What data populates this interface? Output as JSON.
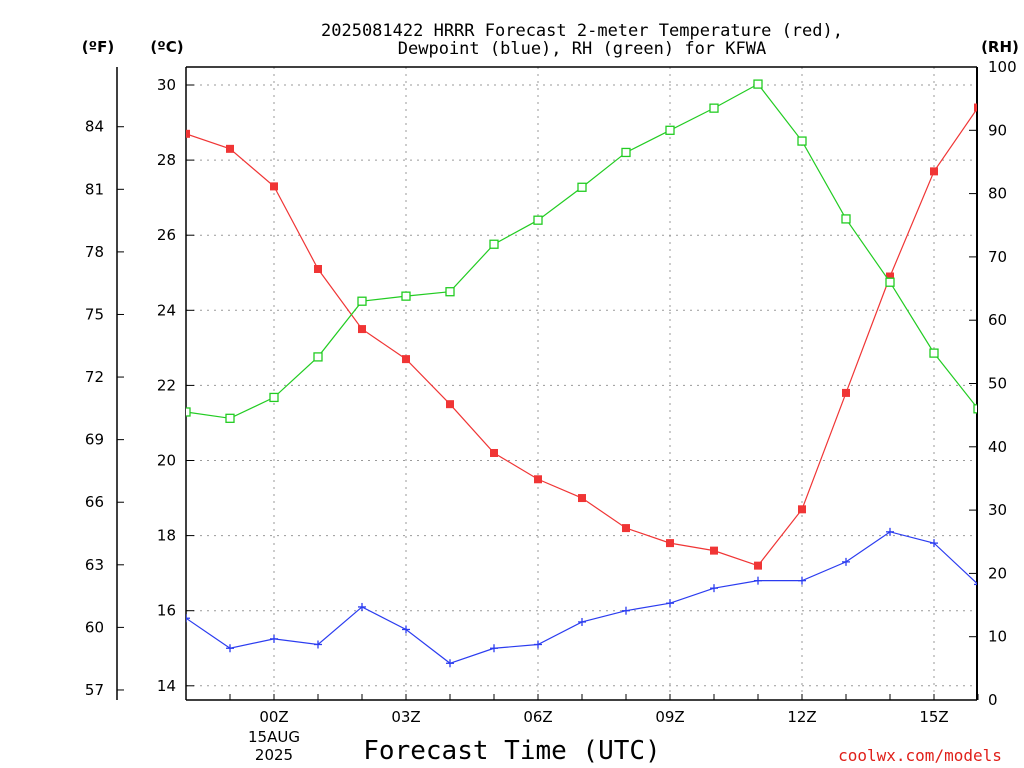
{
  "title_line1": "2025081422 HRRR Forecast 2-meter Temperature (red),",
  "title_line2": "Dewpoint (blue), RH (green) for KFWA",
  "unit_f": "(ºF)",
  "unit_c": "(ºC)",
  "unit_rh": "(RH)",
  "xlabel": "Forecast Time (UTC)",
  "credit": "coolwx.com/models",
  "date_label_day": "15AUG",
  "date_label_year": "2025",
  "colors": {
    "temp": "#f03535",
    "dewpoint": "#2b3cf0",
    "rh": "#22cc22",
    "credit": "#e0201a"
  },
  "chart_data": {
    "type": "line",
    "x": [
      "22Z",
      "23Z",
      "00Z",
      "01Z",
      "02Z",
      "03Z",
      "04Z",
      "05Z",
      "06Z",
      "07Z",
      "08Z",
      "09Z",
      "10Z",
      "11Z",
      "12Z",
      "13Z",
      "14Z",
      "15Z",
      "16Z"
    ],
    "x_tick_labels": [
      "00Z",
      "03Z",
      "06Z",
      "09Z",
      "12Z",
      "15Z"
    ],
    "series": [
      {
        "name": "Temperature",
        "unit": "°C",
        "color": "#f03535",
        "marker": "filled-square",
        "values": [
          28.7,
          28.3,
          27.3,
          25.1,
          23.5,
          22.7,
          21.5,
          20.2,
          19.5,
          19.0,
          18.2,
          17.8,
          17.6,
          17.2,
          18.7,
          21.8,
          24.9,
          27.7,
          29.4
        ]
      },
      {
        "name": "Dewpoint",
        "unit": "°C",
        "color": "#2b3cf0",
        "marker": "plus",
        "values": [
          15.8,
          15.0,
          15.25,
          15.1,
          16.1,
          15.5,
          14.6,
          15.0,
          15.1,
          15.7,
          16.0,
          16.2,
          16.6,
          16.8,
          16.8,
          17.3,
          18.1,
          17.8,
          16.7
        ]
      },
      {
        "name": "RH",
        "unit": "%",
        "color": "#22cc22",
        "marker": "open-square",
        "values": [
          45.5,
          44.5,
          47.8,
          54.2,
          63.0,
          63.8,
          64.5,
          72.0,
          75.8,
          81.0,
          86.5,
          90.0,
          93.5,
          97.3,
          88.3,
          76.0,
          66.0,
          54.8,
          46.0
        ]
      }
    ],
    "y_left_c": {
      "ticks": [
        14,
        16,
        18,
        20,
        22,
        24,
        26,
        28,
        30
      ]
    },
    "y_left_f": {
      "ticks": [
        57,
        60,
        63,
        66,
        69,
        72,
        75,
        78,
        81,
        84
      ]
    },
    "y_right_rh": {
      "ticks": [
        0,
        10,
        20,
        30,
        40,
        50,
        60,
        70,
        80,
        90,
        100
      ]
    },
    "grid": true
  }
}
